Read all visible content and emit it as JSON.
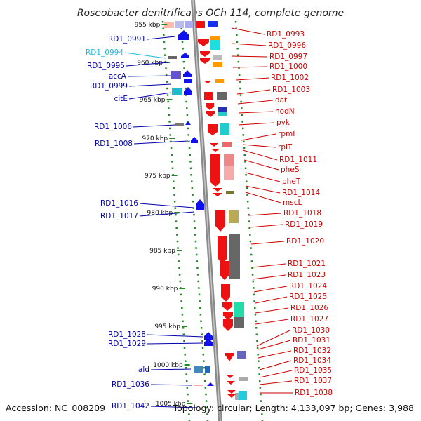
{
  "title": "Roseobacter denitrificans OCh 114, complete genome",
  "footer": {
    "accession": "Accession: NC_008209",
    "summary": "Topology: circular; Length: 4,133,097 bp; Genes: 3,988"
  },
  "ticks": [
    "955 kbp",
    "960 kbp",
    "965 kbp",
    "970 kbp",
    "975 kbp",
    "980 kbp",
    "985 kbp",
    "990 kbp",
    "995 kbp",
    "1000 kbp",
    "1005 kbp"
  ],
  "colors": {
    "left_label": "#0000aa",
    "left_highlight": "#22bbdd",
    "right_label": "#cc0000",
    "axis": "#9a9a9a",
    "dots": "#228822",
    "minus_strand": "#1111ee",
    "plus_strand": "#ee1111"
  },
  "left_labels": [
    {
      "text": "RD1_0991",
      "highlight": false
    },
    {
      "text": "RD1_0994",
      "highlight": true
    },
    {
      "text": "RD1_0995",
      "highlight": false
    },
    {
      "text": "accA",
      "highlight": false
    },
    {
      "text": "RD1_0999",
      "highlight": false
    },
    {
      "text": "citE",
      "highlight": false
    },
    {
      "text": "RD1_1006",
      "highlight": false
    },
    {
      "text": "RD1_1008",
      "highlight": false
    },
    {
      "text": "RD1_1016",
      "highlight": false
    },
    {
      "text": "RD1_1017",
      "highlight": false
    },
    {
      "text": "RD1_1028",
      "highlight": false
    },
    {
      "text": "RD1_1029",
      "highlight": false
    },
    {
      "text": "ald",
      "highlight": false
    },
    {
      "text": "RD1_1036",
      "highlight": false
    },
    {
      "text": "RD1_1042",
      "highlight": false
    }
  ],
  "right_labels": [
    "RD1_0993",
    "RD1_0996",
    "RD1_0997",
    "RD1_1000",
    "RD1_1002",
    "RD1_1003",
    "dat",
    "nodN",
    "pyk",
    "rpmI",
    "rplT",
    "RD1_1011",
    "pheS",
    "pheT",
    "RD1_1014",
    "mscL",
    "RD1_1018",
    "RD1_1019",
    "RD1_1020",
    "RD1_1021",
    "RD1_1023",
    "RD1_1024",
    "RD1_1025",
    "RD1_1026",
    "RD1_1027",
    "RD1_1030",
    "RD1_1031",
    "RD1_1032",
    "RD1_1034",
    "RD1_1035",
    "RD1_1037",
    "RD1_1038"
  ]
}
